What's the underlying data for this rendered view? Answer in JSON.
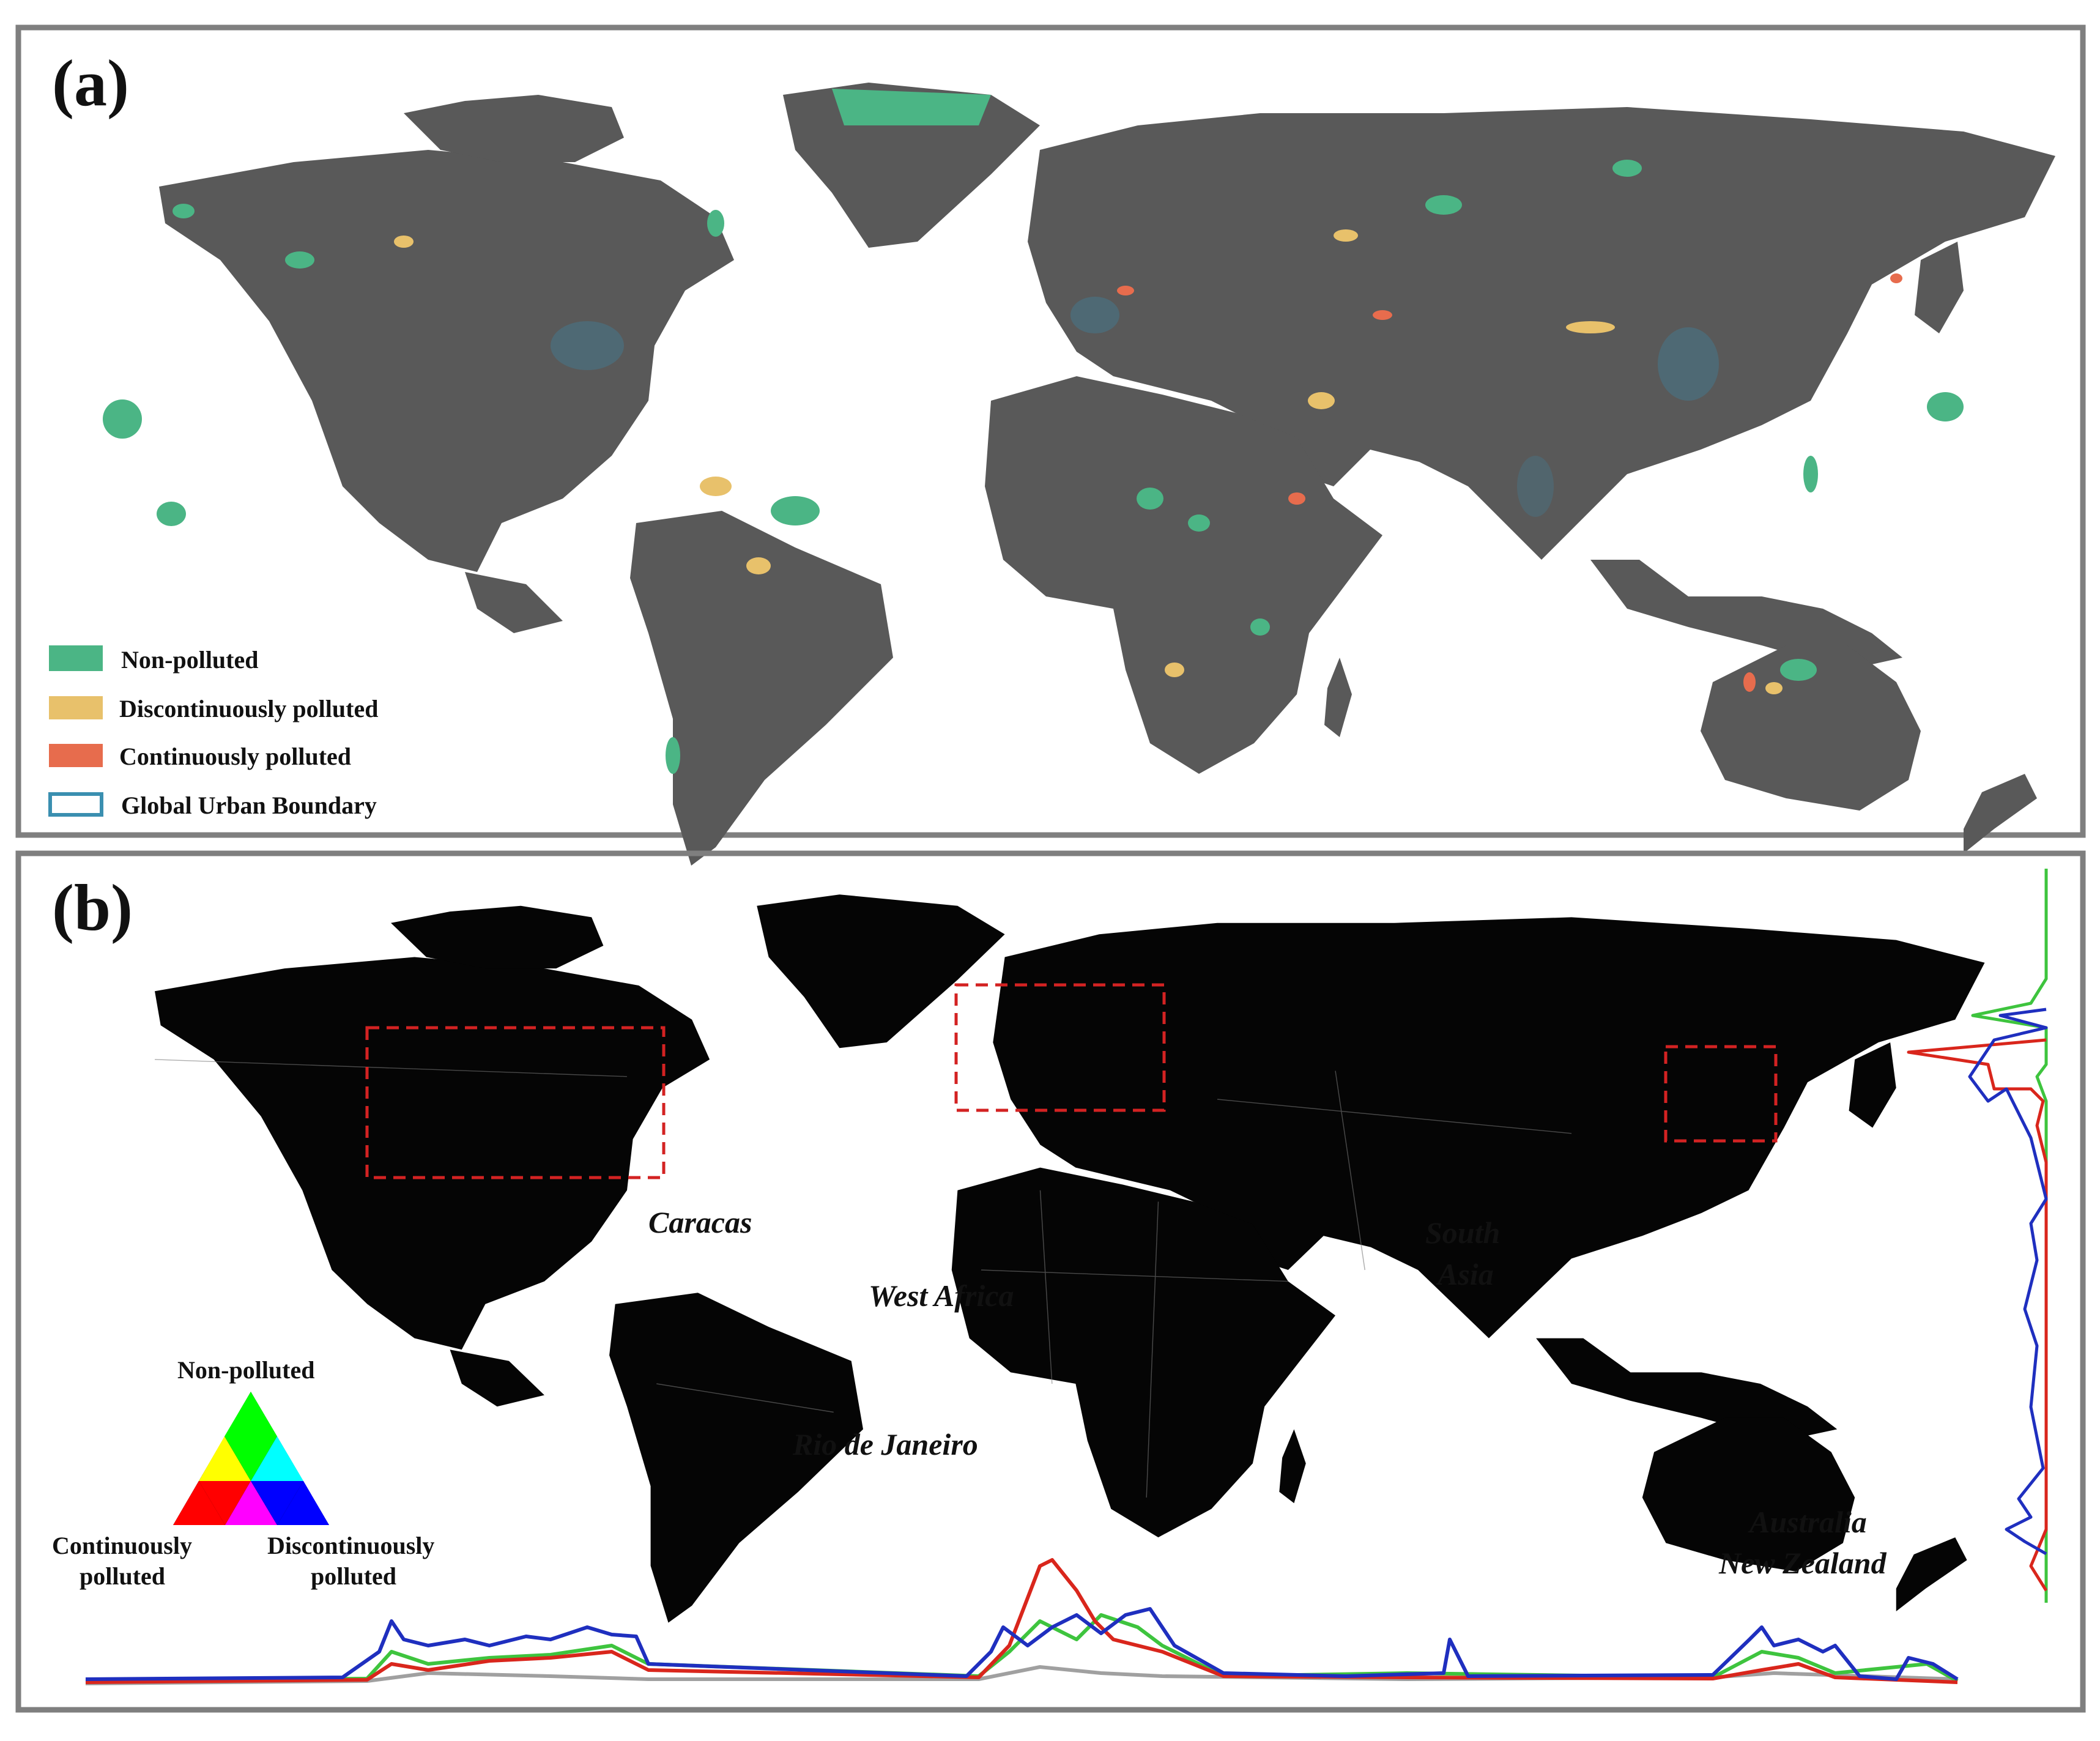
{
  "panel_a": {
    "label": "(a)",
    "legend": [
      {
        "label": "Non-polluted",
        "color": "#4bb585",
        "kind": "fill"
      },
      {
        "label": "Discontinuously polluted",
        "color": "#e8c16b",
        "kind": "fill"
      },
      {
        "label": "Continuously polluted",
        "color": "#e76c4d",
        "kind": "fill"
      },
      {
        "label": "Global Urban Boundary",
        "color": "#3a8fb0",
        "kind": "outline"
      }
    ]
  },
  "panel_b": {
    "label": "(b)",
    "region_labels": [
      "Caracas",
      "West Africa",
      "South",
      "Asia",
      "Rio de Janeiro",
      "Australia",
      "New Zealand"
    ],
    "ternary_legend": {
      "top": "Non-polluted",
      "left_line1": "Continuously",
      "left_line2": "polluted",
      "right_line1": "Discontinuously",
      "right_line2": "polluted",
      "colors": {
        "non_polluted": "#00ff00",
        "continuously_polluted": "#ff0000",
        "discontinuously_polluted": "#0000ff",
        "mix_yellow": "#ffff00",
        "mix_cyan": "#00ffff",
        "mix_magenta": "#ff00ff"
      }
    },
    "profile_colors": {
      "blue": "#1f2fbf",
      "red": "#d9261c",
      "green": "#3ec43e",
      "gray": "#a0a0a0"
    }
  }
}
